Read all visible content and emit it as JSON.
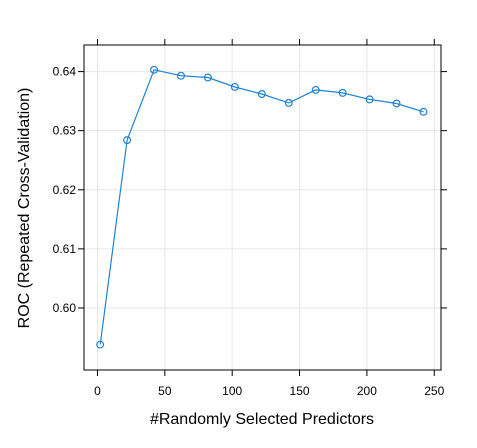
{
  "chart_data": {
    "type": "line",
    "title": "",
    "xlabel": "#Randomly Selected Predictors",
    "ylabel": "ROC (Repeated Cross-Validation)",
    "xlim": [
      -10,
      255
    ],
    "ylim": [
      0.5895,
      0.6445
    ],
    "x_ticks": [
      0,
      50,
      100,
      150,
      200,
      250
    ],
    "y_ticks": [
      0.6,
      0.61,
      0.62,
      0.63,
      0.64
    ],
    "grid": true,
    "legend": "none",
    "series": [
      {
        "x": [
          2,
          22,
          42,
          62,
          82,
          102,
          122,
          142,
          162,
          182,
          202,
          222,
          242
        ],
        "y": [
          0.5938,
          0.6284,
          0.6403,
          0.6393,
          0.639,
          0.6374,
          0.6362,
          0.6347,
          0.6369,
          0.6364,
          0.6353,
          0.6346,
          0.6332
        ],
        "color": "#1f83d6",
        "marker": "open-circle"
      }
    ]
  },
  "colors": {
    "line": "#1f83d6",
    "grid": "#e6e6e6",
    "frame": "#000000"
  }
}
